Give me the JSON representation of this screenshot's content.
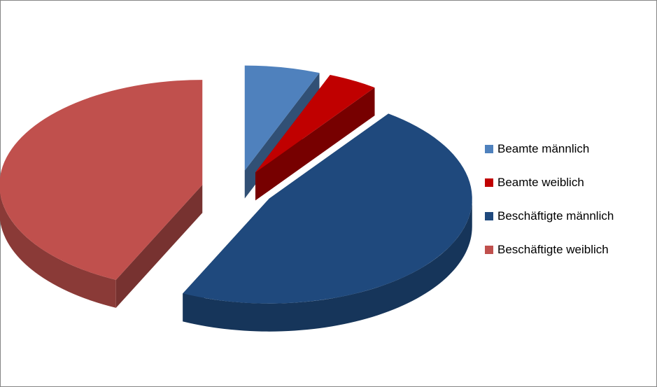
{
  "chart_data": {
    "type": "pie",
    "title": "",
    "categories": [
      "Beamte männlich",
      "Beamte weiblich",
      "Beschäftigte männlich",
      "Beschäftigte weiblich"
    ],
    "values": [
      6,
      4,
      47,
      43
    ],
    "colors": [
      "#4F81BD",
      "#C00000",
      "#1F497D",
      "#C0504D"
    ],
    "legend_position": "right",
    "style": "3d-exploded"
  }
}
